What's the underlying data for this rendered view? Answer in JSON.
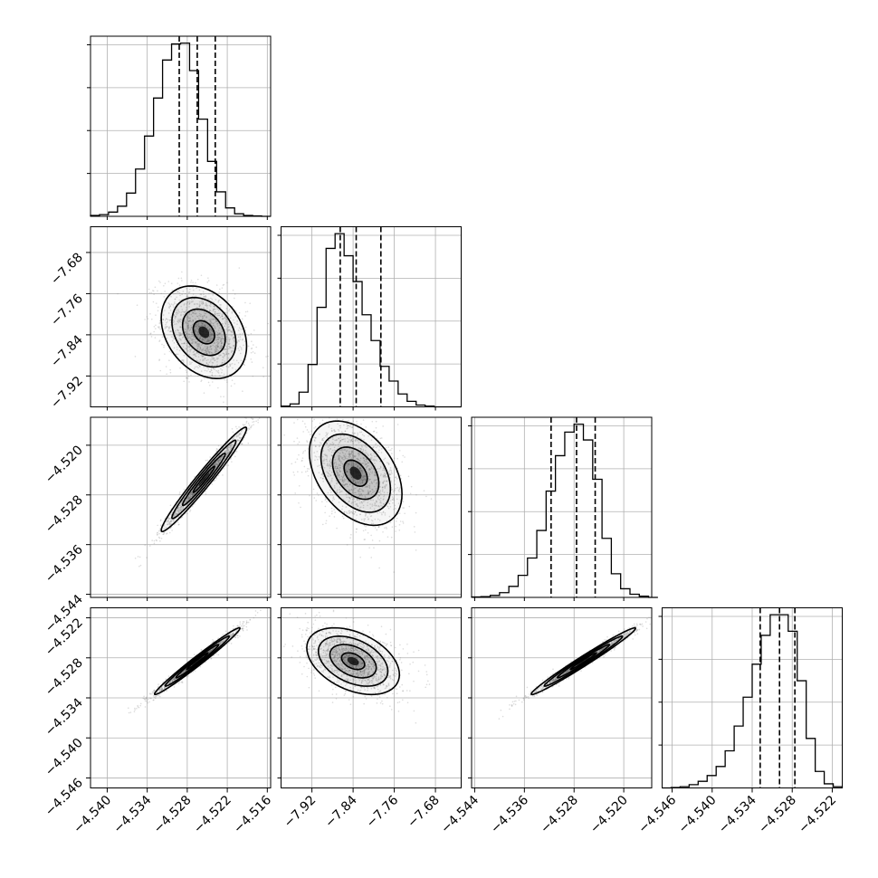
{
  "chart_data": {
    "type": "corner",
    "title": "",
    "parameters": [
      {
        "index": 0,
        "label": "",
        "mean": -4.5265,
        "sigma": 0.0032,
        "range": [
          -4.5425,
          -4.5155
        ],
        "ticks": [
          -4.54,
          -4.534,
          -4.528,
          -4.522,
          -4.516
        ],
        "tick_labels": [
          "−4.540",
          "−4.534",
          "−4.528",
          "−4.522",
          "−4.516"
        ],
        "quantiles": [
          -4.5292,
          -4.5265,
          -4.5238
        ],
        "histogram": {
          "bin_edges": [
            -4.5425,
            -4.54115,
            -4.5398,
            -4.53845,
            -4.5371,
            -4.53575,
            -4.5344,
            -4.53305,
            -4.5317,
            -4.53035,
            -4.529,
            -4.52765,
            -4.5263,
            -4.52495,
            -4.5236,
            -4.52225,
            -4.5209,
            -4.51955,
            -4.5182,
            -4.51685,
            -4.5155
          ],
          "counts": [
            2,
            4,
            10,
            24,
            55,
            112,
            190,
            280,
            370,
            408,
            410,
            345,
            230,
            130,
            58,
            20,
            6,
            2,
            1,
            0
          ]
        }
      },
      {
        "index": 1,
        "label": "",
        "mean": -7.825,
        "sigma": 0.045,
        "range": [
          -7.98,
          -7.63
        ],
        "ticks": [
          -7.92,
          -7.84,
          -7.76,
          -7.68
        ],
        "tick_labels": [
          "−7.92",
          "−7.84",
          "−7.76",
          "−7.68"
        ],
        "quantiles": [
          -7.865,
          -7.834,
          -7.786
        ],
        "histogram": {
          "bin_edges": [
            -7.98,
            -7.9625,
            -7.945,
            -7.9275,
            -7.91,
            -7.8925,
            -7.875,
            -7.8575,
            -7.84,
            -7.8225,
            -7.805,
            -7.7875,
            -7.77,
            -7.7525,
            -7.735,
            -7.7175,
            -7.7,
            -7.6825,
            -7.665,
            -7.6475,
            -7.63
          ],
          "counts": [
            2,
            8,
            40,
            115,
            270,
            430,
            470,
            410,
            340,
            250,
            180,
            110,
            70,
            35,
            15,
            5,
            2,
            0,
            0,
            0
          ]
        }
      },
      {
        "index": 2,
        "label": "",
        "mean": -4.5255,
        "sigma": 0.0042,
        "range": [
          -4.5445,
          -4.5155
        ],
        "ticks": [
          -4.544,
          -4.536,
          -4.528,
          -4.52
        ],
        "tick_labels": [
          "−4.544",
          "−4.536",
          "−4.528",
          "−4.520"
        ],
        "quantiles": [
          -4.5317,
          -4.5276,
          -4.5246
        ],
        "histogram": {
          "bin_edges": [
            -4.5445,
            -4.543,
            -4.5415,
            -4.54,
            -4.5385,
            -4.537,
            -4.5355,
            -4.534,
            -4.5325,
            -4.531,
            -4.5295,
            -4.528,
            -4.5265,
            -4.525,
            -4.5235,
            -4.522,
            -4.5205,
            -4.519,
            -4.5175,
            -4.516,
            -4.5145
          ],
          "counts": [
            1,
            2,
            5,
            12,
            28,
            56,
            100,
            170,
            270,
            360,
            420,
            440,
            400,
            300,
            150,
            60,
            22,
            8,
            3,
            0
          ]
        }
      },
      {
        "index": 3,
        "label": "",
        "mean": -4.5295,
        "sigma": 0.0025,
        "range": [
          -4.5475,
          -4.5205
        ],
        "ticks": [
          -4.546,
          -4.54,
          -4.534,
          -4.528,
          -4.522
        ],
        "tick_labels": [
          "−4.546",
          "−4.540",
          "−4.534",
          "−4.528",
          "−4.522"
        ],
        "quantiles": [
          -4.5328,
          -4.5299,
          -4.5276
        ],
        "histogram": {
          "bin_edges": [
            -4.5475,
            -4.54615,
            -4.5448,
            -4.54345,
            -4.5421,
            -4.54075,
            -4.5394,
            -4.53805,
            -4.5367,
            -4.53535,
            -4.534,
            -4.53265,
            -4.5313,
            -4.52995,
            -4.5286,
            -4.52725,
            -4.5259,
            -4.52455,
            -4.5232,
            -4.52185,
            -4.5205
          ],
          "counts": [
            0,
            1,
            3,
            8,
            16,
            30,
            52,
            90,
            150,
            220,
            300,
            370,
            420,
            420,
            380,
            260,
            120,
            40,
            10,
            3
          ]
        }
      }
    ],
    "pairs": [
      {
        "row": 1,
        "col": 0,
        "correlation": -0.3,
        "center": [
          -4.5255,
          -7.835
        ]
      },
      {
        "row": 2,
        "col": 0,
        "correlation": 0.975,
        "center": [
          -4.5255,
          -4.5255
        ]
      },
      {
        "row": 2,
        "col": 1,
        "correlation": -0.4,
        "center": [
          -7.835,
          -4.5245
        ]
      },
      {
        "row": 3,
        "col": 0,
        "correlation": 0.985,
        "center": [
          -4.5265,
          -4.5285
        ]
      },
      {
        "row": 3,
        "col": 1,
        "correlation": -0.4,
        "center": [
          -7.84,
          -4.5285
        ]
      },
      {
        "row": 3,
        "col": 2,
        "correlation": 0.985,
        "center": [
          -4.5265,
          -4.5285
        ]
      }
    ],
    "contour_levels_sigma": [
      0.5,
      1.0,
      1.5,
      2.0
    ],
    "grid": true,
    "quantile_line_style": "dashed",
    "colors": {
      "line": "#000000",
      "grid": "#b0b0b0",
      "points": "#808080",
      "density": "#000000"
    }
  }
}
